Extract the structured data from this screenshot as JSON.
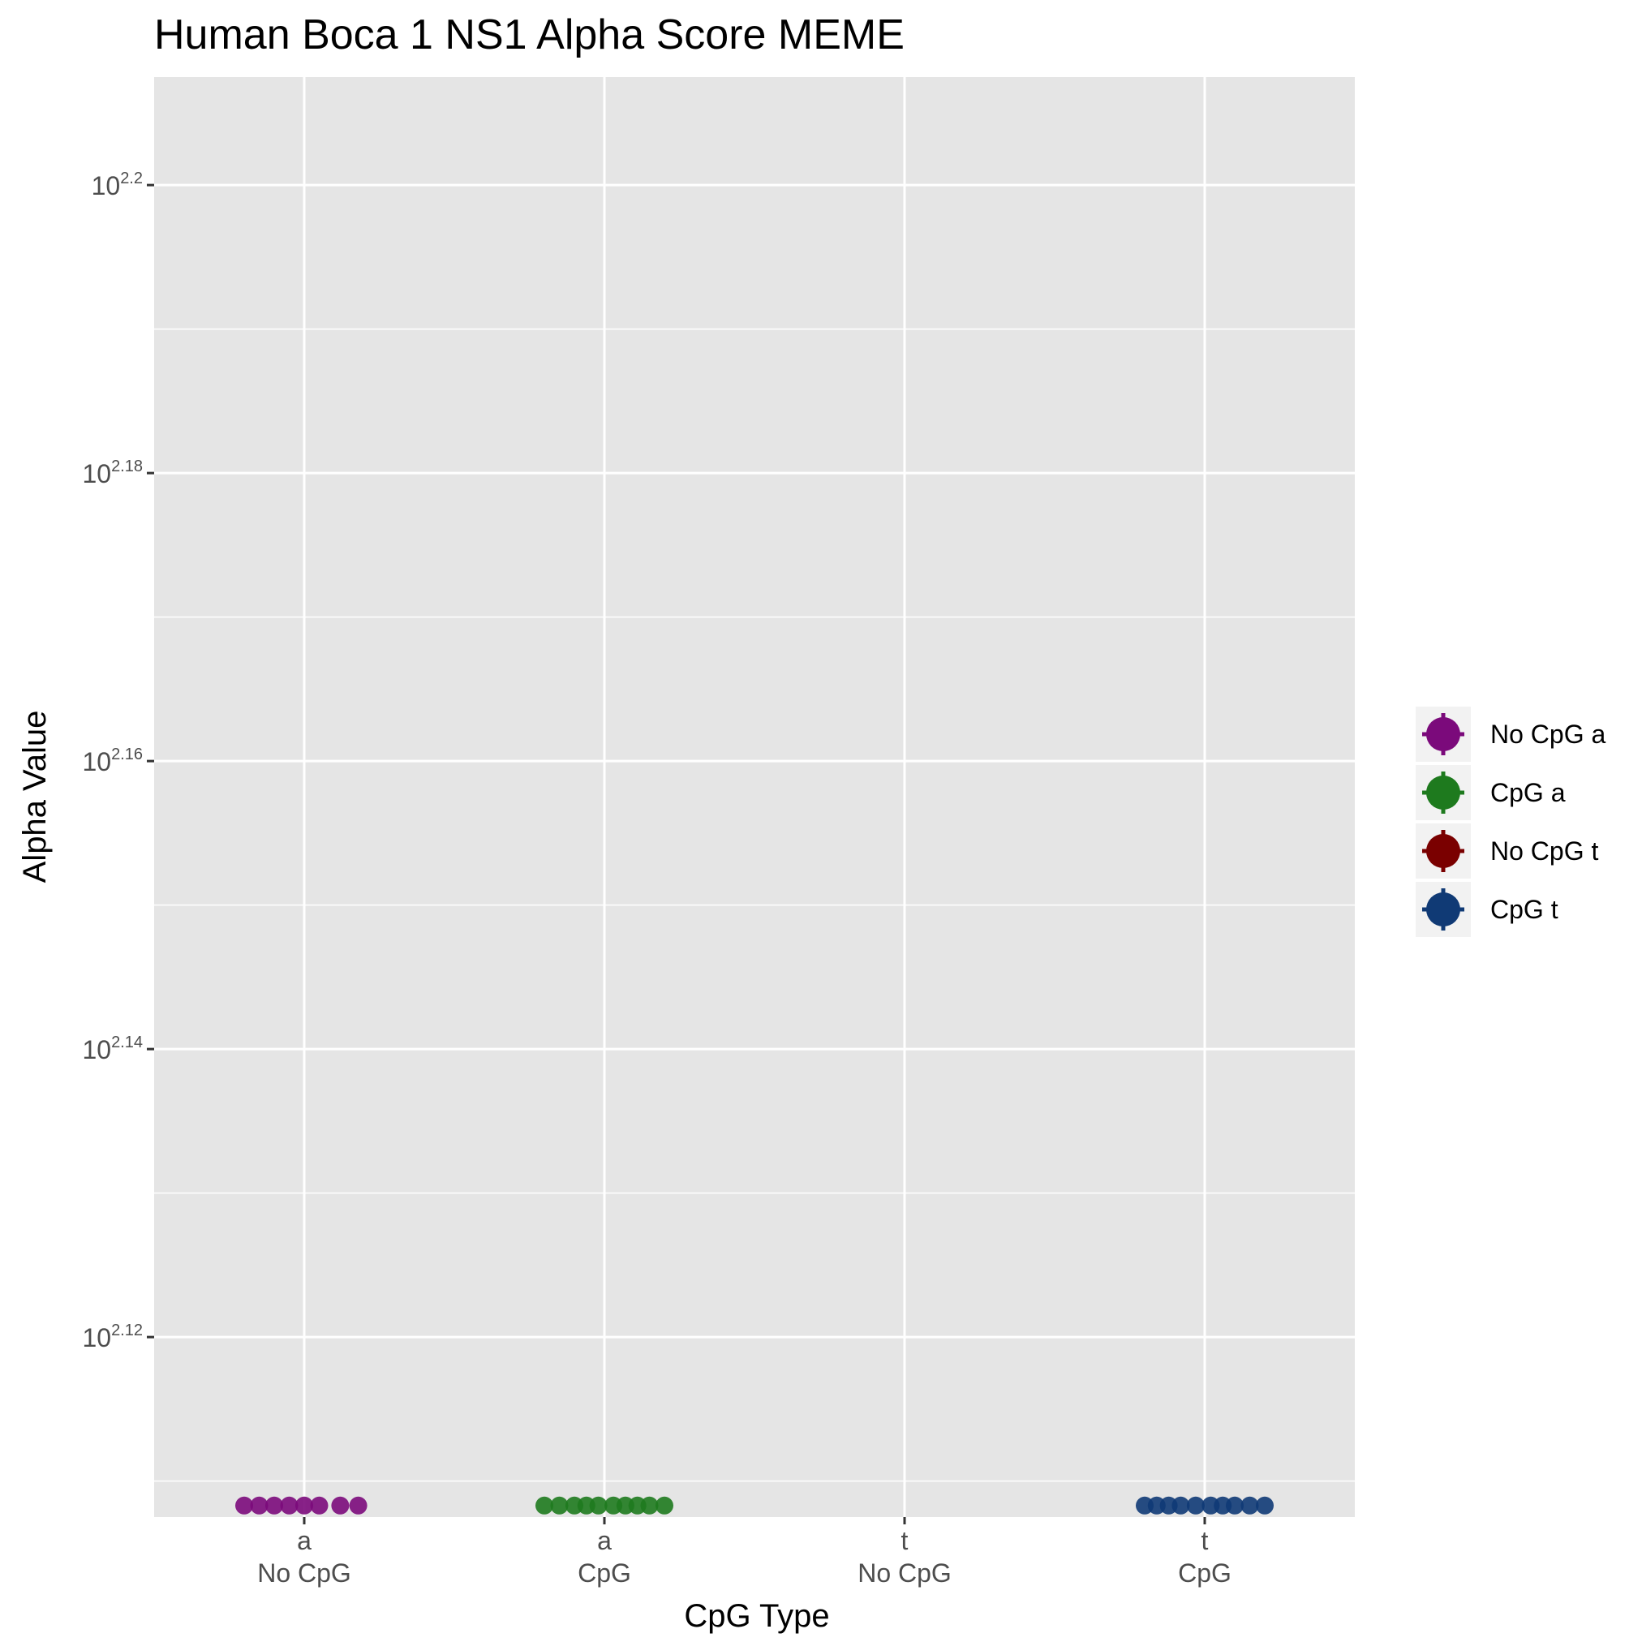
{
  "chart_data": {
    "type": "scatter",
    "title": "Human Boca 1 NS1 Alpha Score MEME",
    "xlabel": "CpG Type",
    "ylabel": "Alpha Value",
    "y_scale": "log10",
    "y_ticks": [
      {
        "base": "10",
        "exp": "2.12",
        "value": 131.83
      },
      {
        "base": "10",
        "exp": "2.14",
        "value": 138.04
      },
      {
        "base": "10",
        "exp": "2.16",
        "value": 144.54
      },
      {
        "base": "10",
        "exp": "2.18",
        "value": 151.36
      },
      {
        "base": "10",
        "exp": "2.2",
        "value": 158.49
      }
    ],
    "ylim_log10": [
      2.1075,
      2.2075
    ],
    "categories": [
      {
        "line1": "a",
        "line2": "No CpG"
      },
      {
        "line1": "a",
        "line2": "CpG"
      },
      {
        "line1": "t",
        "line2": "No CpG"
      },
      {
        "line1": "t",
        "line2": "CpG"
      }
    ],
    "series": [
      {
        "name": "No CpG a",
        "color": "#7b0a7b",
        "category_index": 0,
        "log10_values": [
          2.1083,
          2.1083,
          2.1083,
          2.1083,
          2.1083,
          2.1083,
          2.1083,
          2.1083
        ],
        "jitter": [
          -0.2,
          -0.15,
          -0.1,
          -0.05,
          0.0,
          0.05,
          0.12,
          0.18
        ]
      },
      {
        "name": "CpG a",
        "color": "#1e7a1e",
        "category_index": 1,
        "log10_values": [
          2.1083,
          2.1083,
          2.1083,
          2.1083,
          2.1083,
          2.1083,
          2.1083,
          2.1083,
          2.1083,
          2.1083
        ],
        "jitter": [
          -0.2,
          -0.15,
          -0.1,
          -0.06,
          -0.02,
          0.03,
          0.07,
          0.11,
          0.15,
          0.2
        ]
      },
      {
        "name": "No CpG t",
        "color": "#7a0000",
        "category_index": 2,
        "log10_values": [],
        "jitter": []
      },
      {
        "name": "CpG t",
        "color": "#103a75",
        "category_index": 3,
        "log10_values": [
          2.1083,
          2.1083,
          2.1083,
          2.1083,
          2.1083,
          2.1083,
          2.1083,
          2.1083,
          2.1083,
          2.1083
        ],
        "jitter": [
          -0.2,
          -0.16,
          -0.12,
          -0.08,
          -0.03,
          0.02,
          0.06,
          0.1,
          0.15,
          0.2
        ]
      }
    ],
    "grid": true,
    "legend_position": "right"
  }
}
